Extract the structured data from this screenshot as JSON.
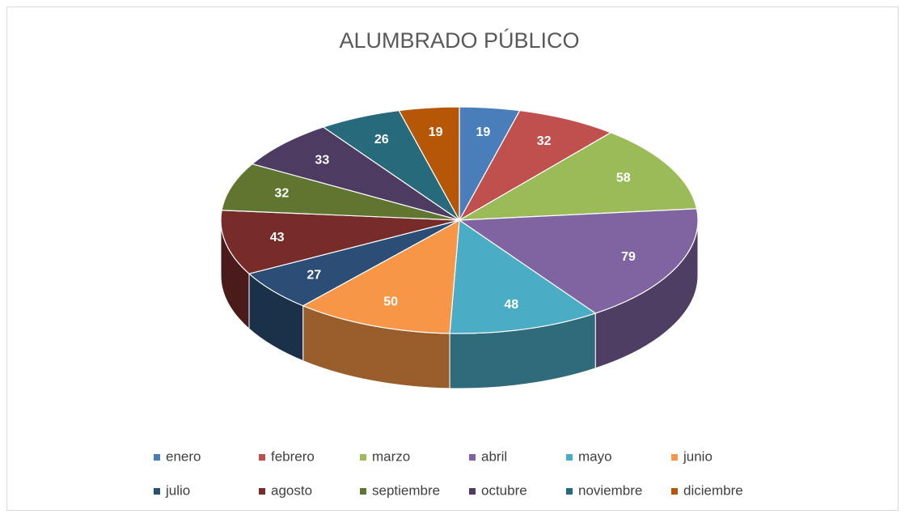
{
  "chart_data": {
    "type": "pie3d",
    "title": "ALUMBRADO PÚBLICO",
    "categories": [
      "enero",
      "febrero",
      "marzo",
      "abril",
      "mayo",
      "junio",
      "julio",
      "agosto",
      "septiembre",
      "octubre",
      "noviembre",
      "diciembre"
    ],
    "values": [
      19,
      32,
      58,
      79,
      48,
      50,
      27,
      43,
      32,
      33,
      26,
      19
    ],
    "colors": [
      "#4a7ebb",
      "#c0504d",
      "#9bbb59",
      "#8064a2",
      "#4bacc6",
      "#f79646",
      "#2c4d75",
      "#772c2a",
      "#5f7530",
      "#4d3b62",
      "#276a7c",
      "#b65708"
    ],
    "legend": "bottom"
  }
}
